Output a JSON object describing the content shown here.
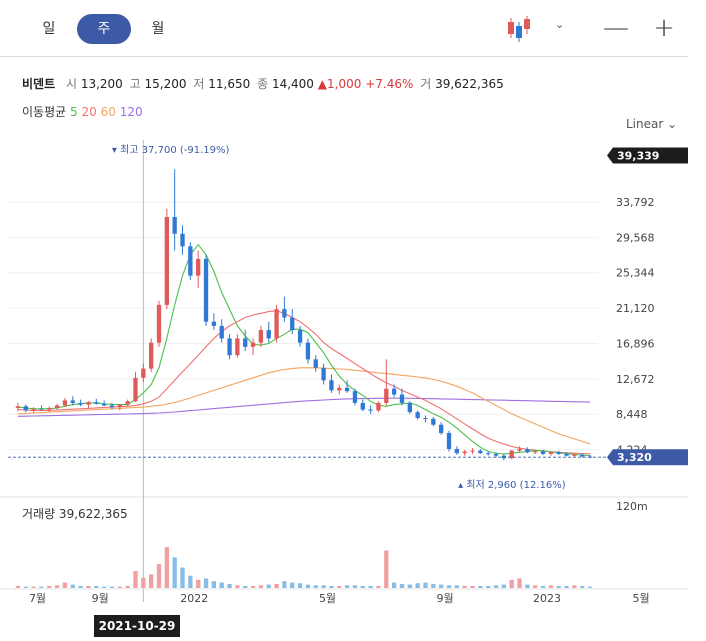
{
  "tabs": [
    {
      "label": "일",
      "active": false
    },
    {
      "label": "주",
      "active": true
    },
    {
      "label": "월",
      "active": false
    }
  ],
  "toolbar": {
    "chart_type_icon": "candlestick-icon",
    "minus_label": "—",
    "plus_label": "+"
  },
  "quote": {
    "name": "비덴트",
    "open_label": "시",
    "open": "13,200",
    "high_label": "고",
    "high": "15,200",
    "low_label": "저",
    "low": "11,650",
    "close_label": "종",
    "close": "14,400",
    "change": "1,000",
    "change_pct": "+7.46%",
    "volume_label": "거",
    "volume": "39,622,365"
  },
  "ma_legend": {
    "label": "이동평균",
    "p5": "5",
    "p20": "20",
    "p60": "60",
    "p120": "120"
  },
  "scale_label": "Linear",
  "tooltip_date": "2021-10-29",
  "colors": {
    "up": "#e05a5a",
    "down": "#2f78d6",
    "ma5": "#4cbf4c",
    "ma20": "#f07070",
    "ma60": "#f4a460",
    "ma120": "#a070e0",
    "accent": "#3d5aa6"
  },
  "chart_data": {
    "type": "candlestick",
    "y_ticks": [
      "33,792",
      "29,568",
      "25,344",
      "21,120",
      "16,896",
      "12,672",
      "8,448",
      "4,224"
    ],
    "y_range": [
      0,
      40000
    ],
    "current_high_tag": "39,339",
    "current_price_tag": "3,320",
    "high_annotation": "최고 37,700 (-91.19%)",
    "low_annotation": "최저 2,960 (12.16%)",
    "x_labels": [
      "7월",
      "9월",
      "2022",
      "5월",
      "9월",
      "2023",
      "5월"
    ],
    "volume_label": "거래량",
    "volume_value": "39,622,365",
    "volume_tick": "120m",
    "candles": [
      [
        9200,
        9800,
        8800,
        9400
      ],
      [
        9400,
        9600,
        8700,
        8900
      ],
      [
        8900,
        9300,
        8600,
        9100
      ],
      [
        9100,
        9500,
        8900,
        9000
      ],
      [
        9000,
        9400,
        8700,
        9200
      ],
      [
        9200,
        9700,
        9000,
        9500
      ],
      [
        9500,
        10400,
        9300,
        10100
      ],
      [
        10100,
        10600,
        9500,
        9800
      ],
      [
        9800,
        10200,
        9400,
        9600
      ],
      [
        9600,
        10000,
        9200,
        9900
      ],
      [
        9900,
        10300,
        9600,
        9700
      ],
      [
        9700,
        10100,
        9400,
        9500
      ],
      [
        9500,
        9800,
        9000,
        9300
      ],
      [
        9300,
        9700,
        8900,
        9600
      ],
      [
        9600,
        10200,
        9400,
        10000
      ],
      [
        10000,
        13500,
        9900,
        12800
      ],
      [
        12800,
        14500,
        12300,
        13900
      ],
      [
        13900,
        17500,
        13500,
        17000
      ],
      [
        17000,
        22000,
        16500,
        21500
      ],
      [
        21500,
        33000,
        21000,
        32000
      ],
      [
        32000,
        37700,
        28000,
        30000
      ],
      [
        30000,
        31000,
        27500,
        28500
      ],
      [
        28500,
        29000,
        24500,
        25000
      ],
      [
        25000,
        28000,
        23500,
        27000
      ],
      [
        27000,
        27500,
        19000,
        19500
      ],
      [
        19500,
        20500,
        18500,
        19000
      ],
      [
        19000,
        19800,
        17000,
        17500
      ],
      [
        17500,
        18000,
        15000,
        15500
      ],
      [
        15500,
        18000,
        15200,
        17500
      ],
      [
        17500,
        18500,
        16000,
        16500
      ],
      [
        16500,
        17500,
        15500,
        17000
      ],
      [
        17000,
        19000,
        16500,
        18500
      ],
      [
        18500,
        19500,
        17000,
        17500
      ],
      [
        17500,
        21500,
        17000,
        21000
      ],
      [
        21000,
        22500,
        19500,
        20000
      ],
      [
        20000,
        21000,
        18000,
        18500
      ],
      [
        18500,
        19000,
        16500,
        17000
      ],
      [
        17000,
        17500,
        14500,
        15000
      ],
      [
        15000,
        15500,
        13500,
        14000
      ],
      [
        14000,
        14500,
        12000,
        12500
      ],
      [
        12500,
        13200,
        11000,
        11300
      ],
      [
        11300,
        12000,
        10800,
        11600
      ],
      [
        11600,
        12500,
        11000,
        11200
      ],
      [
        11200,
        11500,
        9500,
        9800
      ],
      [
        9800,
        10200,
        8800,
        9000
      ],
      [
        9000,
        9500,
        8500,
        8900
      ],
      [
        8900,
        10000,
        8700,
        9800
      ],
      [
        9800,
        15000,
        9500,
        11500
      ],
      [
        11500,
        12000,
        10500,
        10800
      ],
      [
        10800,
        11500,
        9500,
        9800
      ],
      [
        9800,
        10000,
        8500,
        8700
      ],
      [
        8700,
        8900,
        7800,
        8000
      ],
      [
        8000,
        8300,
        7500,
        7900
      ],
      [
        7900,
        8100,
        7000,
        7200
      ],
      [
        7200,
        7500,
        6000,
        6200
      ],
      [
        6200,
        6500,
        4000,
        4300
      ],
      [
        4300,
        4600,
        3600,
        3800
      ],
      [
        3800,
        4200,
        3500,
        4000
      ],
      [
        4000,
        4400,
        3700,
        4100
      ],
      [
        4100,
        4300,
        3700,
        3800
      ],
      [
        3800,
        4000,
        3500,
        3700
      ],
      [
        3700,
        3900,
        3300,
        3500
      ],
      [
        3500,
        3700,
        2960,
        3200
      ],
      [
        3200,
        4200,
        3100,
        4100
      ],
      [
        4100,
        4600,
        3900,
        4300
      ],
      [
        4300,
        4500,
        3800,
        3900
      ],
      [
        3900,
        4200,
        3700,
        4000
      ],
      [
        4000,
        4200,
        3600,
        3700
      ],
      [
        3700,
        4000,
        3500,
        3900
      ],
      [
        3900,
        4100,
        3600,
        3700
      ],
      [
        3700,
        3900,
        3400,
        3500
      ],
      [
        3500,
        3800,
        3300,
        3600
      ],
      [
        3600,
        3800,
        3300,
        3400
      ],
      [
        3400,
        3600,
        3200,
        3320
      ]
    ],
    "ma5": [
      9300,
      9200,
      9100,
      9100,
      9100,
      9200,
      9400,
      9600,
      9700,
      9800,
      9800,
      9700,
      9600,
      9600,
      9600,
      10200,
      11000,
      12000,
      14000,
      17500,
      21500,
      25000,
      27500,
      28700,
      27500,
      25500,
      23000,
      21000,
      19000,
      17800,
      16800,
      16700,
      16900,
      17500,
      18000,
      18600,
      18600,
      18200,
      17000,
      15800,
      14300,
      13000,
      12000,
      11300,
      10700,
      10000,
      9500,
      9400,
      9600,
      9700,
      9800,
      9500,
      9000,
      8500,
      8100,
      7500,
      6800,
      6000,
      5200,
      4500,
      4000,
      3800,
      3700,
      3800,
      3900,
      4000,
      4100,
      4100,
      3950,
      3850,
      3750,
      3650,
      3580,
      3500
    ],
    "ma20": [
      9000,
      8950,
      8900,
      8900,
      8900,
      8950,
      9000,
      9050,
      9100,
      9150,
      9200,
      9250,
      9300,
      9350,
      9400,
      9500,
      9700,
      10000,
      10500,
      11500,
      12500,
      13500,
      14500,
      15500,
      16500,
      17500,
      18300,
      19000,
      19500,
      20000,
      20300,
      20500,
      20700,
      20800,
      20500,
      20000,
      19500,
      18800,
      18000,
      17000,
      16300,
      15700,
      15100,
      14500,
      13900,
      13300,
      12700,
      12200,
      11800,
      11300,
      10900,
      10500,
      10100,
      9600,
      9100,
      8500,
      7900,
      7300,
      6700,
      6100,
      5600,
      5200,
      4900,
      4600,
      4400,
      4250,
      4150,
      4050,
      3980,
      3900,
      3850,
      3800,
      3760,
      3720
    ],
    "ma60": [
      8500,
      8550,
      8600,
      8650,
      8700,
      8750,
      8800,
      8850,
      8900,
      8950,
      9000,
      9050,
      9100,
      9150,
      9200,
      9250,
      9300,
      9400,
      9500,
      9650,
      9850,
      10100,
      10400,
      10700,
      11000,
      11300,
      11600,
      11900,
      12200,
      12500,
      12800,
      13100,
      13400,
      13600,
      13800,
      13900,
      14000,
      14000,
      14000,
      13950,
      13900,
      13850,
      13800,
      13700,
      13600,
      13500,
      13400,
      13300,
      13200,
      13100,
      13000,
      12900,
      12800,
      12600,
      12400,
      12100,
      11800,
      11400,
      11000,
      10500,
      10000,
      9500,
      9000,
      8500,
      8100,
      7700,
      7300,
      6900,
      6500,
      6100,
      5800,
      5500,
      5200,
      4900
    ],
    "ma120": [
      8200,
      8220,
      8240,
      8260,
      8280,
      8300,
      8320,
      8340,
      8360,
      8380,
      8400,
      8420,
      8440,
      8460,
      8480,
      8500,
      8520,
      8560,
      8600,
      8660,
      8720,
      8800,
      8880,
      8960,
      9040,
      9120,
      9200,
      9280,
      9360,
      9440,
      9520,
      9600,
      9680,
      9760,
      9840,
      9920,
      10000,
      10050,
      10100,
      10150,
      10200,
      10250,
      10280,
      10300,
      10320,
      10340,
      10350,
      10360,
      10360,
      10360,
      10350,
      10340,
      10320,
      10300,
      10280,
      10260,
      10240,
      10220,
      10200,
      10180,
      10160,
      10140,
      10120,
      10100,
      10080,
      10060,
      10040,
      10020,
      10000,
      9980,
      9960,
      9940,
      9920,
      9900
    ],
    "volumes": [
      3,
      2,
      2,
      2,
      3,
      4,
      8,
      5,
      3,
      3,
      3,
      2,
      2,
      2,
      3,
      25,
      15,
      20,
      35,
      60,
      45,
      30,
      18,
      12,
      14,
      10,
      8,
      6,
      4,
      3,
      3,
      4,
      5,
      6,
      10,
      8,
      7,
      5,
      4,
      4,
      3,
      3,
      4,
      4,
      3,
      3,
      3,
      55,
      8,
      6,
      5,
      7,
      8,
      6,
      5,
      4,
      4,
      3,
      3,
      3,
      3,
      4,
      5,
      12,
      14,
      5,
      4,
      3,
      4,
      3,
      3,
      4,
      3,
      2
    ]
  }
}
